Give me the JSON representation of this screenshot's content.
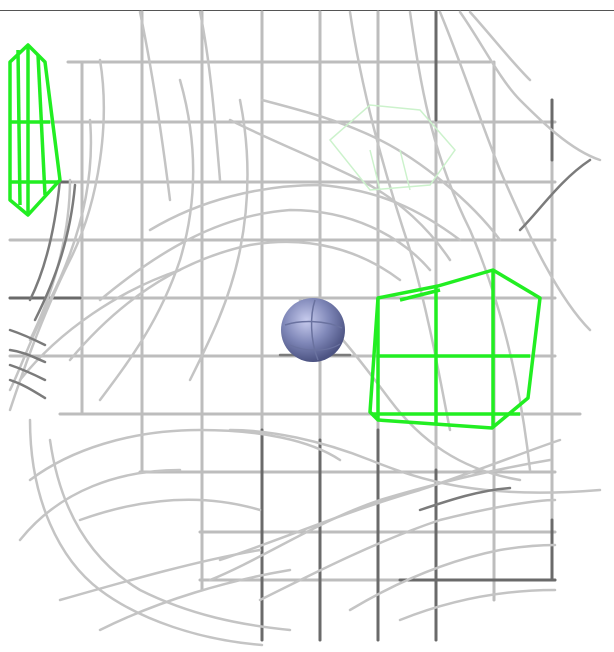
{
  "scene": {
    "background_color": "#ffffff",
    "wire_color": "#b8b8b8",
    "wire_dark_color": "#5a5a5a",
    "highlight_color": "#22ee22",
    "sphere_color": "#8088b8",
    "icons": [
      "wireframe-mesh",
      "sphere-marker",
      "highlighted-polygon"
    ]
  }
}
